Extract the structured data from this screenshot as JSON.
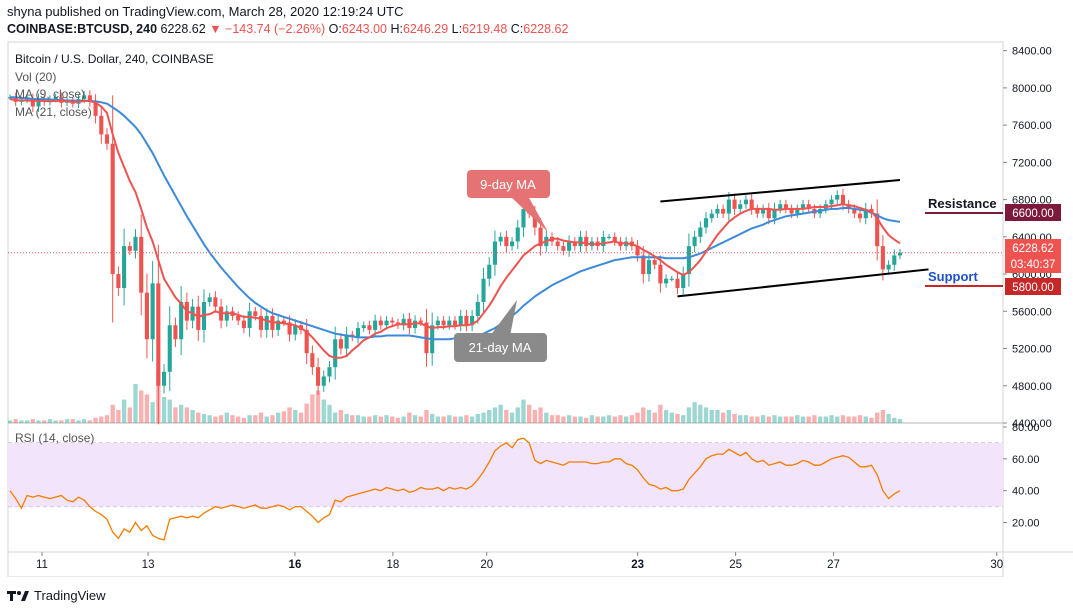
{
  "header": {
    "published_line": "shyna published on TradingView.com, March 28, 2020 12:19:24 UTC",
    "symbol": "COINBASE:BTCUSD, 240",
    "last": "6228.62",
    "change": "−143.74 (−2.26%)",
    "open_label": "O:",
    "open": "6243.00",
    "high_label": "H:",
    "high": "6246.29",
    "low_label": "L:",
    "low": "6219.48",
    "close_label": "C:",
    "close": "6228.62"
  },
  "legend": {
    "title": "Bitcoin / U.S. Dollar, 240, COINBASE",
    "vol": "Vol (20)",
    "ma9": "MA (9, close)",
    "ma21": "MA (21, close)",
    "rsi": "RSI (14, close)"
  },
  "annotations": {
    "ma9_callout": "9-day MA",
    "ma21_callout": "21-day MA",
    "resistance": "Resistance",
    "support": "Support"
  },
  "price_tags": {
    "resistance": "6600.00",
    "last": "6228.62",
    "countdown": "03:40:37",
    "support": "5800.00"
  },
  "footer": {
    "brand": "TradingView"
  },
  "colors": {
    "up": "#26a69a",
    "down": "#ef5350",
    "ma9": "#ef5350",
    "ma21": "#3c8ad8",
    "rsi": "#f57c00",
    "rsi_band": "#f1e4fb",
    "resistance_tag": "#7d1a3c",
    "support_tag": "#c62828",
    "support_text": "#1e50c8",
    "callout_red": "#e57373",
    "callout_gray": "#8a8a8a"
  },
  "chart_data": [
    {
      "type": "candlestick",
      "title": "Bitcoin / U.S. Dollar, 240, COINBASE",
      "x_ticks": [
        "11",
        "13",
        "16",
        "18",
        "20",
        "23",
        "25",
        "27",
        "30"
      ],
      "y_ticks": [
        "4400.00",
        "4800.00",
        "5200.00",
        "5600.00",
        "6000.00",
        "6400.00",
        "6800.00",
        "7200.00",
        "7600.00",
        "8000.00",
        "8400.00"
      ],
      "ylim": [
        4400,
        8450
      ],
      "close": [
        7900,
        7850,
        7870,
        7880,
        7800,
        7880,
        7850,
        7880,
        7900,
        7840,
        7860,
        7830,
        7880,
        7920,
        7850,
        7700,
        7500,
        7400,
        6000,
        5850,
        6300,
        6250,
        6400,
        5800,
        5300,
        5900,
        4800,
        4950,
        5450,
        5300,
        5700,
        5500,
        5650,
        5400,
        5700,
        5750,
        5650,
        5500,
        5600,
        5550,
        5500,
        5420,
        5600,
        5550,
        5400,
        5550,
        5400,
        5500,
        5480,
        5350,
        5450,
        5400,
        5150,
        5000,
        4800,
        4900,
        5000,
        5300,
        5200,
        5350,
        5320,
        5420,
        5450,
        5400,
        5500,
        5450,
        5500,
        5480,
        5450,
        5520,
        5420,
        5500,
        5480,
        5150,
        5450,
        5500,
        5450,
        5500,
        5450,
        5550,
        5450,
        5550,
        5700,
        5950,
        6100,
        6350,
        6400,
        6300,
        6350,
        6500,
        6700,
        6650,
        6500,
        6300,
        6400,
        6350,
        6300,
        6250,
        6350,
        6300,
        6400,
        6300,
        6350,
        6300,
        6400,
        6400,
        6350,
        6300,
        6350,
        6300,
        6200,
        6000,
        6150,
        6100,
        5900,
        5950,
        5950,
        5850,
        6000,
        6300,
        6400,
        6500,
        6600,
        6650,
        6700,
        6650,
        6800,
        6700,
        6750,
        6800,
        6700,
        6650,
        6700,
        6600,
        6700,
        6750,
        6700,
        6650,
        6700,
        6750,
        6700,
        6650,
        6700,
        6750,
        6800,
        6850,
        6750,
        6700,
        6650,
        6600,
        6700,
        6650,
        6300,
        6050,
        6100,
        6200,
        6230
      ],
      "ma9": [
        7880,
        7870,
        7865,
        7865,
        7860,
        7860,
        7860,
        7855,
        7860,
        7860,
        7855,
        7850,
        7850,
        7860,
        7860,
        7840,
        7800,
        7730,
        7500,
        7300,
        7150,
        7000,
        6880,
        6700,
        6500,
        6350,
        6150,
        5950,
        5850,
        5750,
        5680,
        5600,
        5580,
        5540,
        5560,
        5570,
        5600,
        5580,
        5580,
        5580,
        5560,
        5540,
        5540,
        5530,
        5520,
        5500,
        5480,
        5480,
        5470,
        5460,
        5450,
        5420,
        5380,
        5320,
        5250,
        5180,
        5120,
        5100,
        5100,
        5120,
        5180,
        5230,
        5290,
        5320,
        5360,
        5380,
        5420,
        5440,
        5460,
        5460,
        5460,
        5470,
        5470,
        5440,
        5420,
        5430,
        5430,
        5440,
        5440,
        5450,
        5450,
        5460,
        5500,
        5580,
        5660,
        5760,
        5870,
        5960,
        6040,
        6120,
        6200,
        6250,
        6300,
        6330,
        6350,
        6380,
        6380,
        6360,
        6350,
        6340,
        6340,
        6330,
        6320,
        6320,
        6330,
        6340,
        6350,
        6330,
        6330,
        6320,
        6300,
        6260,
        6230,
        6190,
        6150,
        6100,
        6060,
        6020,
        5990,
        6020,
        6080,
        6150,
        6240,
        6330,
        6420,
        6490,
        6560,
        6610,
        6650,
        6680,
        6700,
        6700,
        6700,
        6700,
        6690,
        6690,
        6700,
        6700,
        6700,
        6700,
        6710,
        6720,
        6720,
        6720,
        6730,
        6740,
        6750,
        6740,
        6730,
        6710,
        6690,
        6670,
        6600,
        6500,
        6420,
        6370,
        6330
      ],
      "ma21": [
        7900,
        7900,
        7890,
        7890,
        7880,
        7880,
        7880,
        7875,
        7870,
        7870,
        7865,
        7865,
        7860,
        7860,
        7860,
        7855,
        7845,
        7830,
        7790,
        7750,
        7700,
        7640,
        7580,
        7500,
        7400,
        7300,
        7180,
        7060,
        6950,
        6840,
        6730,
        6620,
        6520,
        6420,
        6320,
        6230,
        6150,
        6070,
        6000,
        5930,
        5860,
        5800,
        5740,
        5690,
        5650,
        5610,
        5580,
        5560,
        5540,
        5520,
        5500,
        5480,
        5460,
        5440,
        5420,
        5400,
        5380,
        5360,
        5350,
        5340,
        5330,
        5320,
        5320,
        5320,
        5330,
        5330,
        5340,
        5340,
        5340,
        5340,
        5340,
        5330,
        5320,
        5310,
        5300,
        5300,
        5300,
        5300,
        5310,
        5310,
        5320,
        5320,
        5340,
        5360,
        5390,
        5420,
        5460,
        5500,
        5550,
        5600,
        5660,
        5710,
        5760,
        5800,
        5840,
        5880,
        5910,
        5940,
        5970,
        6000,
        6030,
        6050,
        6070,
        6090,
        6110,
        6130,
        6150,
        6160,
        6170,
        6180,
        6180,
        6180,
        6180,
        6180,
        6180,
        6170,
        6170,
        6170,
        6170,
        6180,
        6200,
        6220,
        6250,
        6280,
        6310,
        6340,
        6370,
        6400,
        6430,
        6460,
        6490,
        6510,
        6530,
        6560,
        6580,
        6600,
        6620,
        6630,
        6640,
        6650,
        6660,
        6670,
        6680,
        6690,
        6700,
        6700,
        6710,
        6710,
        6700,
        6690,
        6680,
        6660,
        6630,
        6600,
        6580,
        6570,
        6560
      ],
      "volume": [
        2,
        3,
        2,
        2,
        3,
        2,
        2,
        3,
        2,
        2,
        3,
        3,
        2,
        3,
        2,
        4,
        5,
        6,
        14,
        10,
        18,
        12,
        30,
        25,
        22,
        16,
        40,
        20,
        18,
        12,
        14,
        12,
        10,
        8,
        7,
        6,
        5,
        6,
        8,
        6,
        5,
        4,
        6,
        6,
        8,
        5,
        6,
        8,
        9,
        12,
        10,
        8,
        15,
        22,
        25,
        18,
        14,
        8,
        10,
        7,
        6,
        6,
        5,
        5,
        6,
        5,
        6,
        5,
        4,
        5,
        8,
        6,
        5,
        10,
        7,
        5,
        5,
        6,
        5,
        5,
        6,
        5,
        7,
        8,
        10,
        12,
        14,
        10,
        8,
        12,
        18,
        14,
        10,
        12,
        8,
        6,
        6,
        5,
        6,
        5,
        5,
        4,
        6,
        5,
        5,
        6,
        5,
        6,
        5,
        6,
        8,
        12,
        10,
        8,
        14,
        10,
        8,
        7,
        6,
        12,
        16,
        14,
        12,
        10,
        10,
        8,
        10,
        7,
        6,
        6,
        5,
        5,
        6,
        5,
        6,
        5,
        5,
        5,
        6,
        5,
        5,
        6,
        5,
        5,
        6,
        5,
        6,
        5,
        5,
        6,
        5,
        4,
        8,
        10,
        7,
        4,
        3
      ]
    },
    {
      "type": "line",
      "title": "RSI (14, close)",
      "y_ticks": [
        "20.00",
        "40.00",
        "60.00",
        "80.00"
      ],
      "ylim": [
        4,
        80
      ],
      "bands": [
        30,
        70
      ],
      "values": [
        40,
        35,
        29,
        37,
        36,
        37,
        36,
        35,
        36,
        37,
        34,
        33,
        36,
        34,
        30,
        27,
        25,
        22,
        14,
        10,
        16,
        14,
        20,
        15,
        18,
        12,
        10,
        9,
        22,
        23,
        24,
        23,
        24,
        23,
        26,
        28,
        30,
        29,
        30,
        31,
        30,
        29,
        30,
        31,
        29,
        29,
        30,
        31,
        30,
        28,
        30,
        30,
        27,
        24,
        20,
        23,
        25,
        34,
        33,
        36,
        37,
        38,
        39,
        40,
        41,
        40,
        42,
        41,
        40,
        41,
        39,
        40,
        42,
        41,
        41,
        42,
        40,
        42,
        41,
        42,
        41,
        43,
        47,
        52,
        58,
        65,
        68,
        70,
        67,
        72,
        73,
        70,
        59,
        57,
        59,
        58,
        57,
        56,
        58,
        58,
        58,
        58,
        57,
        57,
        58,
        58,
        60,
        60,
        57,
        56,
        53,
        48,
        44,
        43,
        41,
        42,
        40,
        40,
        41,
        47,
        51,
        55,
        60,
        62,
        63,
        63,
        66,
        64,
        62,
        64,
        60,
        58,
        59,
        56,
        57,
        58,
        56,
        56,
        57,
        59,
        58,
        56,
        56,
        58,
        60,
        61,
        62,
        61,
        58,
        55,
        55,
        56,
        50,
        40,
        35,
        38,
        40
      ]
    }
  ]
}
